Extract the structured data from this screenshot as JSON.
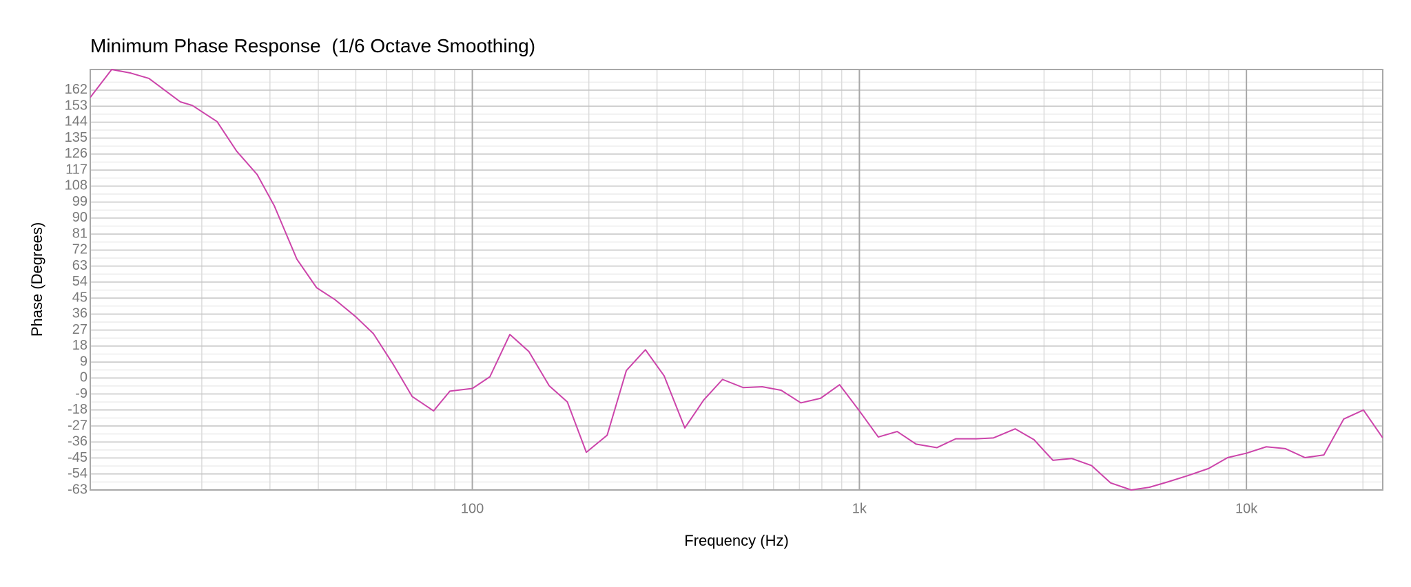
{
  "chart_data": {
    "type": "line",
    "title": "Minimum Phase Response",
    "subtitle": "(1/6 Octave Smoothing)",
    "x_label": "Frequency (Hz)",
    "y_label": "Phase (Degrees)",
    "x_scale": "log",
    "color": "#cc44aa",
    "grid": true,
    "xlim": [
      10.3,
      22500
    ],
    "ylim": [
      -63,
      173.6
    ],
    "xticks": [
      100,
      {
        "value": 1000,
        "label": "1k"
      },
      {
        "value": 10000,
        "label": "10k"
      }
    ],
    "yticks": [
      -63,
      -54,
      -45,
      -36,
      -27,
      -18,
      -9,
      0,
      9,
      18,
      27,
      36,
      45,
      54,
      63,
      72,
      81,
      90,
      99,
      108,
      117,
      126,
      135,
      144,
      153,
      162
    ],
    "x": [
      10.3,
      11.7,
      13.1,
      14.6,
      17.6,
      18.9,
      21.9,
      24.6,
      27.8,
      30.8,
      35.2,
      39.6,
      44.1,
      49.9,
      55.5,
      62.4,
      69.9,
      79.4,
      87.5,
      100,
      111,
      125,
      140,
      158,
      176,
      197,
      223,
      250,
      280,
      313,
      354,
      396,
      443,
      501,
      561,
      628,
      706,
      794,
      889,
      1000,
      1119,
      1252,
      1401,
      1585,
      1774,
      2005,
      2221,
      2526,
      2826,
      3162,
      3539,
      3981,
      4455,
      5039,
      5609,
      6277,
      7063,
      7988,
      8939,
      10000,
      11250,
      12589,
      14167,
      15849,
      17834,
      20059,
      22500
    ],
    "values": [
      157.9,
      173.6,
      171.6,
      168.6,
      155.4,
      153.4,
      144.3,
      127.7,
      114.5,
      96.8,
      66.9,
      50.8,
      44.2,
      34.6,
      25.0,
      7.8,
      -10.4,
      -18.5,
      -7.4,
      -5.9,
      0.7,
      24.5,
      14.9,
      -4.4,
      -13.5,
      -41.8,
      -32.2,
      4.2,
      15.9,
      1.2,
      -28.1,
      -12.4,
      -0.8,
      -5.4,
      -4.9,
      -6.9,
      -14.0,
      -11.4,
      -3.8,
      -18.5,
      -33.2,
      -30.1,
      -37.2,
      -39.2,
      -34.2,
      -34.2,
      -33.7,
      -28.6,
      -34.7,
      -46.3,
      -45.3,
      -49.3,
      -59.0,
      -63.0,
      -61.5,
      -58.4,
      -54.9,
      -50.9,
      -44.8,
      -42.3,
      -38.7,
      -39.7,
      -44.8,
      -43.3,
      -23.1,
      -18.0,
      -33.7
    ]
  }
}
